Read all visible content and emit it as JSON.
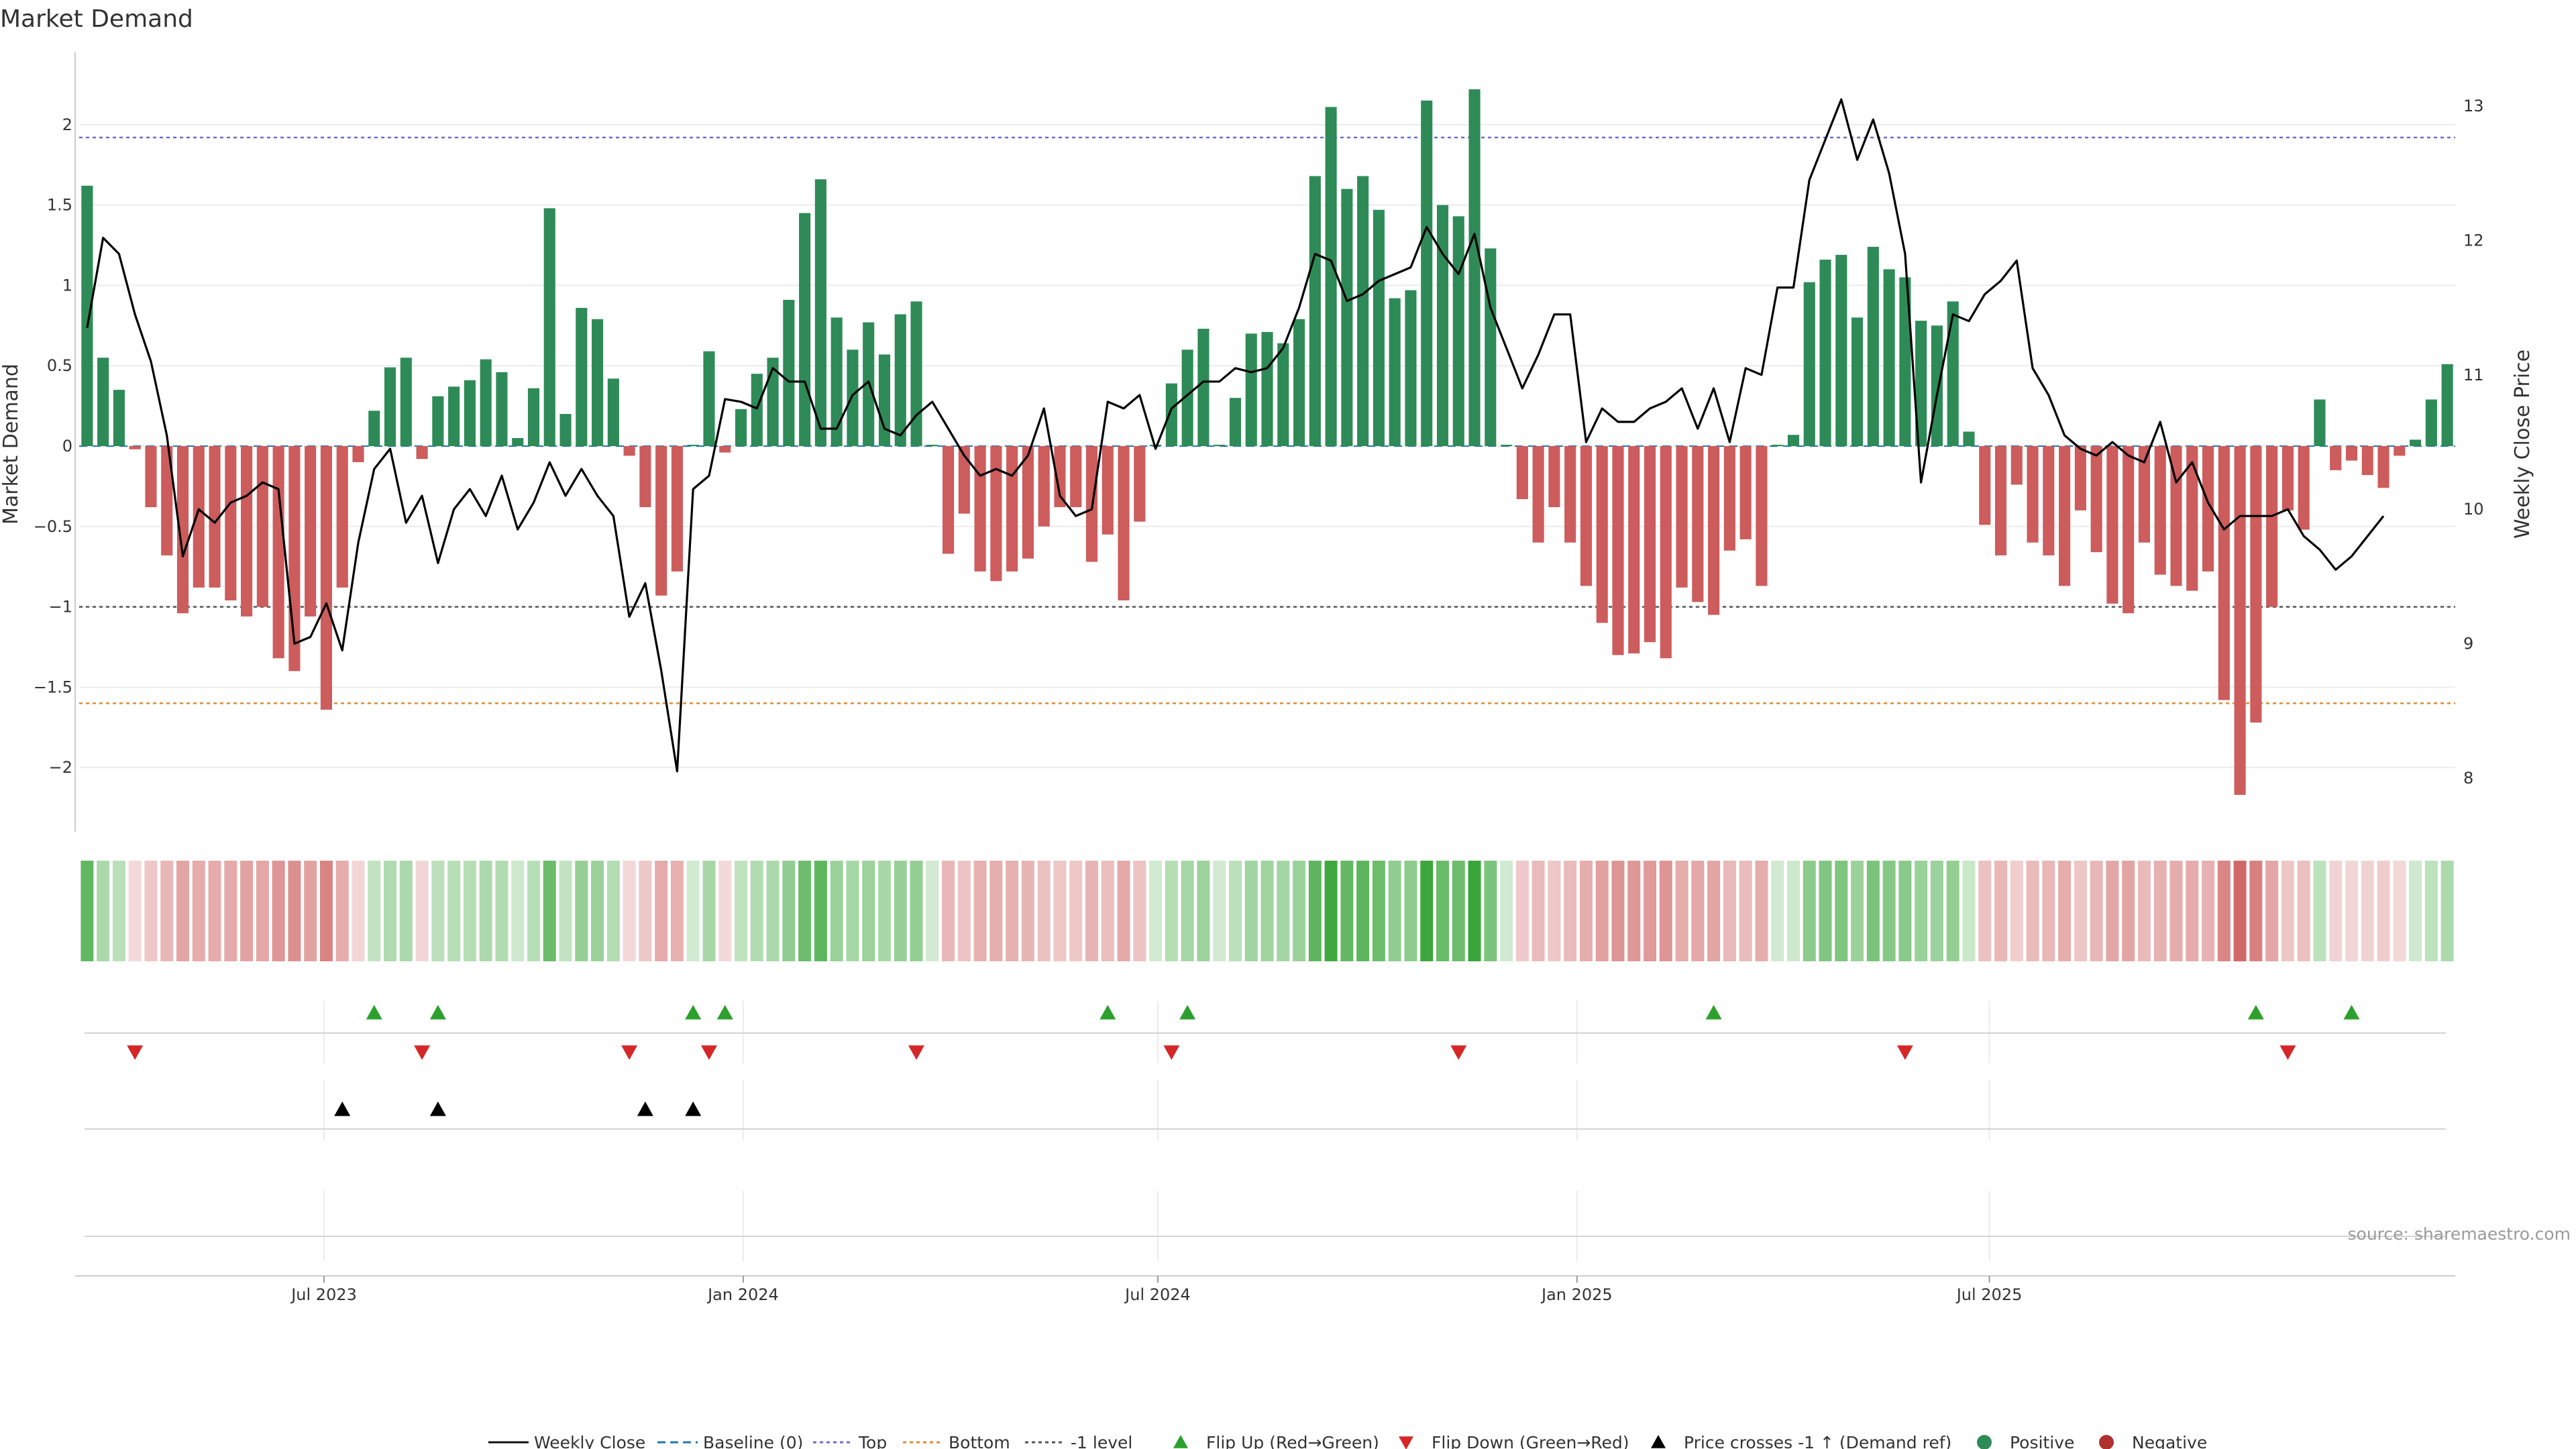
{
  "chart_data": {
    "type": "bar+line",
    "title": "Market Demand",
    "ylabel_left": "Market Demand",
    "ylabel_right": "Weekly Close Price",
    "source": "source: sharemaestro.com",
    "x_start": "2023-03-19",
    "week_step_days": 7,
    "x_ticks": [
      {
        "date": "2023-07-01",
        "label": "Jul 2023"
      },
      {
        "date": "2024-01-01",
        "label": "Jan 2024"
      },
      {
        "date": "2024-07-01",
        "label": "Jul 2024"
      },
      {
        "date": "2025-01-01",
        "label": "Jan 2025"
      },
      {
        "date": "2025-07-01",
        "label": "Jul 2025"
      }
    ],
    "y_left": {
      "min": -2.4,
      "max": 2.45,
      "ticks": [
        2,
        1.5,
        1,
        0.5,
        0,
        -0.5,
        -1,
        -1.5,
        -2
      ],
      "tick_labels": [
        "2",
        "1.5",
        "1",
        "0.5",
        "0",
        "−0.5",
        "−1",
        "−1.5",
        "−2"
      ]
    },
    "y_right": {
      "min": 7.6,
      "max": 13.4,
      "ticks": [
        13,
        12,
        11,
        10,
        9,
        8
      ],
      "tick_labels": [
        "13",
        "12",
        "11",
        "10",
        "9",
        "8"
      ]
    },
    "reference_lines": {
      "top": 1.92,
      "bottom": -1.6,
      "minus_one": -1.0,
      "baseline": 0
    },
    "demand": [
      1.62,
      0.55,
      0.35,
      -0.02,
      -0.38,
      -0.68,
      -1.04,
      -0.88,
      -0.88,
      -0.96,
      -1.06,
      -1.0,
      -1.32,
      -1.4,
      -1.06,
      -1.64,
      -0.88,
      -0.1,
      0.22,
      0.49,
      0.55,
      -0.08,
      0.31,
      0.37,
      0.41,
      0.54,
      0.46,
      0.05,
      0.36,
      1.48,
      0.2,
      0.86,
      0.79,
      0.42,
      -0.06,
      -0.38,
      -0.93,
      -0.78,
      0.0,
      0.59,
      -0.04,
      0.23,
      0.45,
      0.55,
      0.91,
      1.45,
      1.66,
      0.8,
      0.6,
      0.77,
      0.57,
      0.82,
      0.9,
      0.0,
      -0.67,
      -0.42,
      -0.78,
      -0.84,
      -0.78,
      -0.7,
      -0.5,
      -0.38,
      -0.38,
      -0.72,
      -0.55,
      -0.96,
      -0.47,
      0.0,
      0.39,
      0.6,
      0.73,
      0.0,
      0.3,
      0.7,
      0.71,
      0.64,
      0.79,
      1.68,
      2.11,
      1.6,
      1.68,
      1.47,
      0.92,
      0.97,
      2.15,
      1.5,
      1.43,
      2.22,
      1.23,
      0.0,
      -0.33,
      -0.6,
      -0.38,
      -0.6,
      -0.87,
      -1.1,
      -1.3,
      -1.29,
      -1.22,
      -1.32,
      -0.88,
      -0.97,
      -1.05,
      -0.65,
      -0.58,
      -0.87,
      0.0,
      0.07,
      1.02,
      1.16,
      1.19,
      0.8,
      1.24,
      1.1,
      1.05,
      0.78,
      0.75,
      0.9,
      0.09,
      -0.49,
      -0.68,
      -0.24,
      -0.6,
      -0.68,
      -0.87,
      -0.4,
      -0.66,
      -0.98,
      -1.04,
      -0.6,
      -0.8,
      -0.87,
      -0.9,
      -0.78,
      -1.58,
      -2.17,
      -1.72,
      -1.0,
      -0.4,
      -0.52,
      0.29,
      -0.15,
      -0.09,
      -0.18,
      -0.26,
      -0.06,
      0.04,
      0.29,
      0.51
    ],
    "weekly_close": [
      11.35,
      12.02,
      11.9,
      11.45,
      11.1,
      10.55,
      9.65,
      10.0,
      9.9,
      10.05,
      10.1,
      10.2,
      10.15,
      9.0,
      9.05,
      9.3,
      8.95,
      9.75,
      10.3,
      10.45,
      9.9,
      10.1,
      9.6,
      10.0,
      10.15,
      9.95,
      10.25,
      9.85,
      10.05,
      10.35,
      10.1,
      10.3,
      10.1,
      9.95,
      9.2,
      9.45,
      8.8,
      8.05,
      10.15,
      10.25,
      10.82,
      10.8,
      10.75,
      11.05,
      10.95,
      10.95,
      10.6,
      10.6,
      10.85,
      10.95,
      10.6,
      10.55,
      10.7,
      10.8,
      10.6,
      10.4,
      10.25,
      10.3,
      10.25,
      10.4,
      10.75,
      10.1,
      9.95,
      10.0,
      10.8,
      10.75,
      10.85,
      10.45,
      10.75,
      10.85,
      10.95,
      10.95,
      11.05,
      11.02,
      11.05,
      11.2,
      11.5,
      11.9,
      11.85,
      11.55,
      11.6,
      11.7,
      11.75,
      11.8,
      12.1,
      11.9,
      11.75,
      12.05,
      11.5,
      11.2,
      10.9,
      11.15,
      11.45,
      11.45,
      10.5,
      10.75,
      10.65,
      10.65,
      10.75,
      10.8,
      10.9,
      10.6,
      10.9,
      10.5,
      11.05,
      11.0,
      11.65,
      11.65,
      12.45,
      12.75,
      13.05,
      12.6,
      12.9,
      12.5,
      11.9,
      10.2,
      10.85,
      11.45,
      11.4,
      11.6,
      11.7,
      11.85,
      11.05,
      10.85,
      10.55,
      10.45,
      10.4,
      10.5,
      10.4,
      10.35,
      10.65,
      10.2,
      10.35,
      10.05,
      9.85,
      9.95,
      9.95,
      9.95,
      10.0,
      9.8,
      9.7,
      9.55,
      9.65,
      9.8,
      9.95
    ],
    "flip_up_weeks": [
      18,
      22,
      38,
      40,
      64,
      69,
      102,
      136,
      142
    ],
    "flip_down_weeks": [
      3,
      21,
      34,
      39,
      52,
      68,
      86,
      114,
      138
    ],
    "price_cross_weeks": [
      16,
      22,
      35,
      38
    ],
    "colors": {
      "positive": "#2e8b57",
      "negative": "#cd5c5c",
      "flip_up": "#2ca02c",
      "flip_down": "#d62728",
      "cross": "#000000",
      "top_line": "#6b6bd6",
      "bottom_line": "#e08a2c",
      "minus_one_line": "#555555",
      "baseline": "#1f77b4",
      "price_line": "#000000"
    },
    "legend": [
      {
        "label": "Weekly Close",
        "kind": "line-solid",
        "color": "#111111"
      },
      {
        "label": "Baseline (0)",
        "kind": "line-dash",
        "color": "#1f77b4"
      },
      {
        "label": "Top",
        "kind": "line-dot",
        "color": "#6b6bd6"
      },
      {
        "label": "Bottom",
        "kind": "line-dot",
        "color": "#e08a2c"
      },
      {
        "label": "-1 level",
        "kind": "line-dot",
        "color": "#555555"
      },
      {
        "label": "Flip Up (Red→Green)",
        "kind": "tri-up",
        "color": "#2ca02c"
      },
      {
        "label": "Flip Down (Green→Red)",
        "kind": "tri-down",
        "color": "#d62728"
      },
      {
        "label": "Price crosses -1 ↑ (Demand ref)",
        "kind": "tri-up",
        "color": "#000000"
      },
      {
        "label": "Positive",
        "kind": "circle",
        "color": "#2e8b57"
      },
      {
        "label": "Negative",
        "kind": "circle",
        "color": "#b03030"
      }
    ]
  }
}
